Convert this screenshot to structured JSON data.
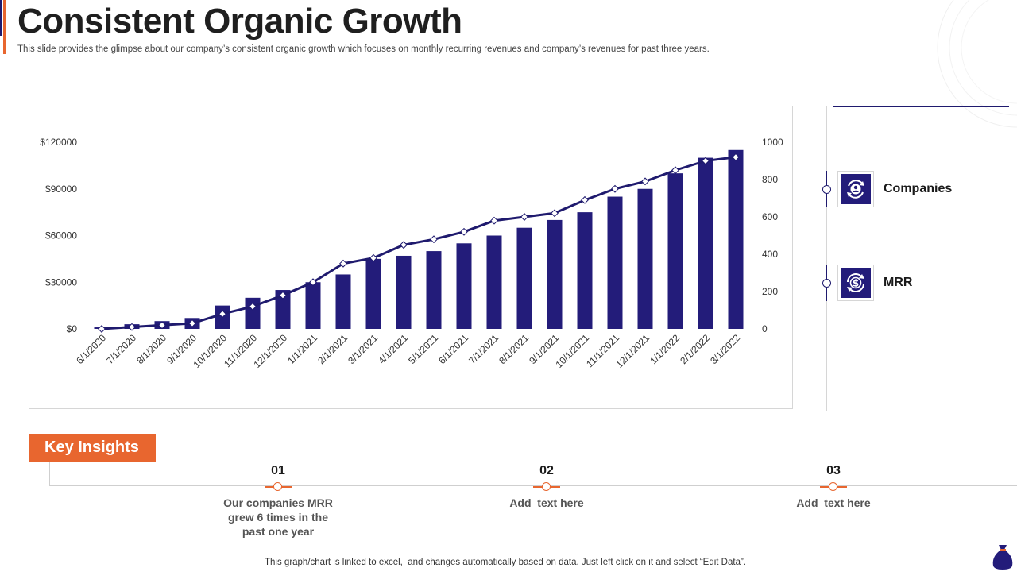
{
  "header": {
    "title": "Consistent Organic Growth",
    "subtitle": "This slide provides the glimpse about our company’s consistent organic growth which focuses on monthly recurring revenues and company’s revenues for past three years."
  },
  "colors": {
    "bar": "#231c7a",
    "line": "#1f1a6e",
    "accent": "#e8662f"
  },
  "chart_data": {
    "type": "bar",
    "title": "",
    "categories": [
      "6/1/2020",
      "7/1/2020",
      "8/1/2020",
      "9/1/2020",
      "10/1/2020",
      "11/1/2020",
      "12/1/2020",
      "1/1/2021",
      "2/1/2021",
      "3/1/2021",
      "4/1/2021",
      "5/1/2021",
      "6/1/2021",
      "7/1/2021",
      "8/1/2021",
      "9/1/2021",
      "10/1/2021",
      "11/1/2021",
      "12/1/2021",
      "1/1/2022",
      "2/1/2022",
      "3/1/2022"
    ],
    "series": [
      {
        "name": "MRR",
        "kind": "bar",
        "axis": "left",
        "values": [
          1000,
          3000,
          5000,
          7000,
          15000,
          20000,
          25000,
          30000,
          35000,
          45000,
          47000,
          50000,
          55000,
          60000,
          65000,
          70000,
          75000,
          85000,
          90000,
          100000,
          110000,
          115000
        ]
      },
      {
        "name": "Companies",
        "kind": "line",
        "axis": "right",
        "values": [
          0,
          10,
          20,
          30,
          80,
          120,
          180,
          250,
          350,
          380,
          450,
          480,
          520,
          580,
          600,
          620,
          690,
          750,
          790,
          850,
          900,
          920
        ]
      }
    ],
    "y_left": {
      "min": 0,
      "max": 120000,
      "ticks": [
        "$0",
        "$30000",
        "$60000",
        "$90000",
        "$120000"
      ]
    },
    "y_right": {
      "min": 0,
      "max": 1000,
      "ticks": [
        "0",
        "200",
        "400",
        "600",
        "800",
        "1000"
      ]
    },
    "xlabel": "",
    "ylabel": "",
    "grid": false
  },
  "legend": [
    {
      "label": "Companies",
      "icon": "user-cycle-icon"
    },
    {
      "label": "MRR",
      "icon": "dollar-cycle-icon"
    }
  ],
  "insights": {
    "heading": "Key Insights",
    "items": [
      {
        "number": "01",
        "text": "Our companies MRR grew 6 times in the past one year"
      },
      {
        "number": "02",
        "text": "Add  text here"
      },
      {
        "number": "03",
        "text": "Add  text here"
      }
    ]
  },
  "footer": {
    "note": "This graph/chart is linked to excel,  and changes automatically based on data. Just left click on it and select “Edit Data”."
  }
}
